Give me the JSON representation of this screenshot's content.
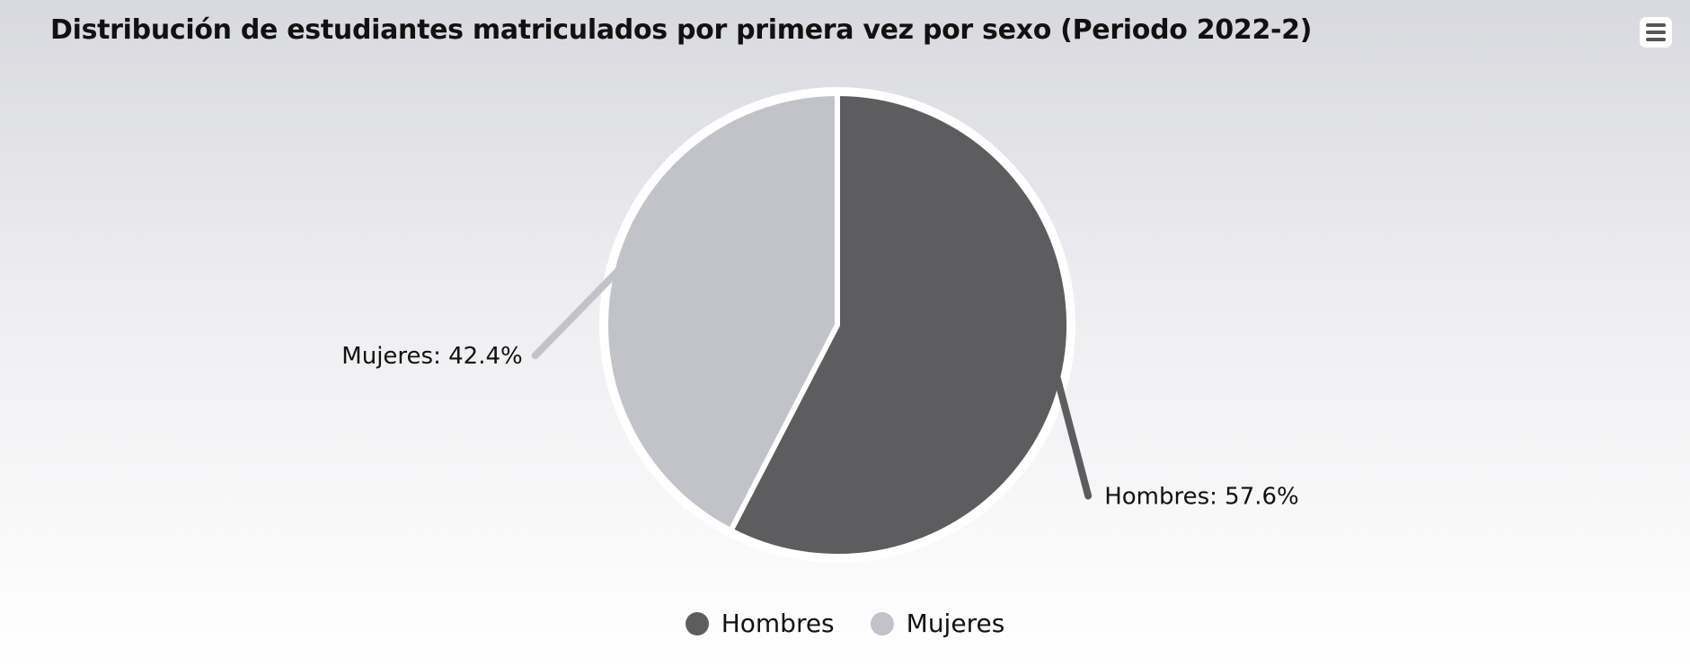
{
  "chart_data": {
    "type": "pie",
    "title": "Distribución de estudiantes matriculados por primera vez por sexo (Periodo 2022-2)",
    "slices": [
      {
        "name": "Hombres",
        "value": 57.6,
        "label": "Hombres: 57.6%",
        "color": "#5d5d5f"
      },
      {
        "name": "Mujeres",
        "value": 42.4,
        "label": "Mujeres: 42.4%",
        "color": "#c2c3c8"
      }
    ],
    "legend": {
      "position": "bottom",
      "items": [
        "Hombres",
        "Mujeres"
      ]
    }
  },
  "menu": {
    "icon": "hamburger-menu-icon"
  }
}
